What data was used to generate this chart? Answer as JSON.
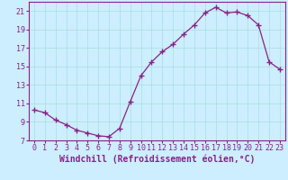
{
  "x": [
    0,
    1,
    2,
    3,
    4,
    5,
    6,
    7,
    8,
    9,
    10,
    11,
    12,
    13,
    14,
    15,
    16,
    17,
    18,
    19,
    20,
    21,
    22,
    23
  ],
  "y": [
    10.3,
    10.0,
    9.2,
    8.7,
    8.1,
    7.8,
    7.5,
    7.4,
    8.3,
    11.2,
    14.0,
    15.5,
    16.6,
    17.4,
    18.5,
    19.5,
    20.8,
    21.4,
    20.8,
    20.9,
    20.5,
    19.5,
    15.5,
    14.7
  ],
  "line_color": "#882288",
  "marker": "+",
  "marker_color": "#882288",
  "bg_color": "#cceeff",
  "grid_color": "#aadddd",
  "xlabel": "Windchill (Refroidissement éolien,°C)",
  "xlabel_color": "#882288",
  "tick_color": "#882288",
  "spine_color": "#882288",
  "ylim": [
    7,
    22
  ],
  "xlim": [
    -0.5,
    23.5
  ],
  "yticks": [
    7,
    9,
    11,
    13,
    15,
    17,
    19,
    21
  ],
  "xticks": [
    0,
    1,
    2,
    3,
    4,
    5,
    6,
    7,
    8,
    9,
    10,
    11,
    12,
    13,
    14,
    15,
    16,
    17,
    18,
    19,
    20,
    21,
    22,
    23
  ],
  "font_size": 6,
  "xlabel_fontsize": 7
}
